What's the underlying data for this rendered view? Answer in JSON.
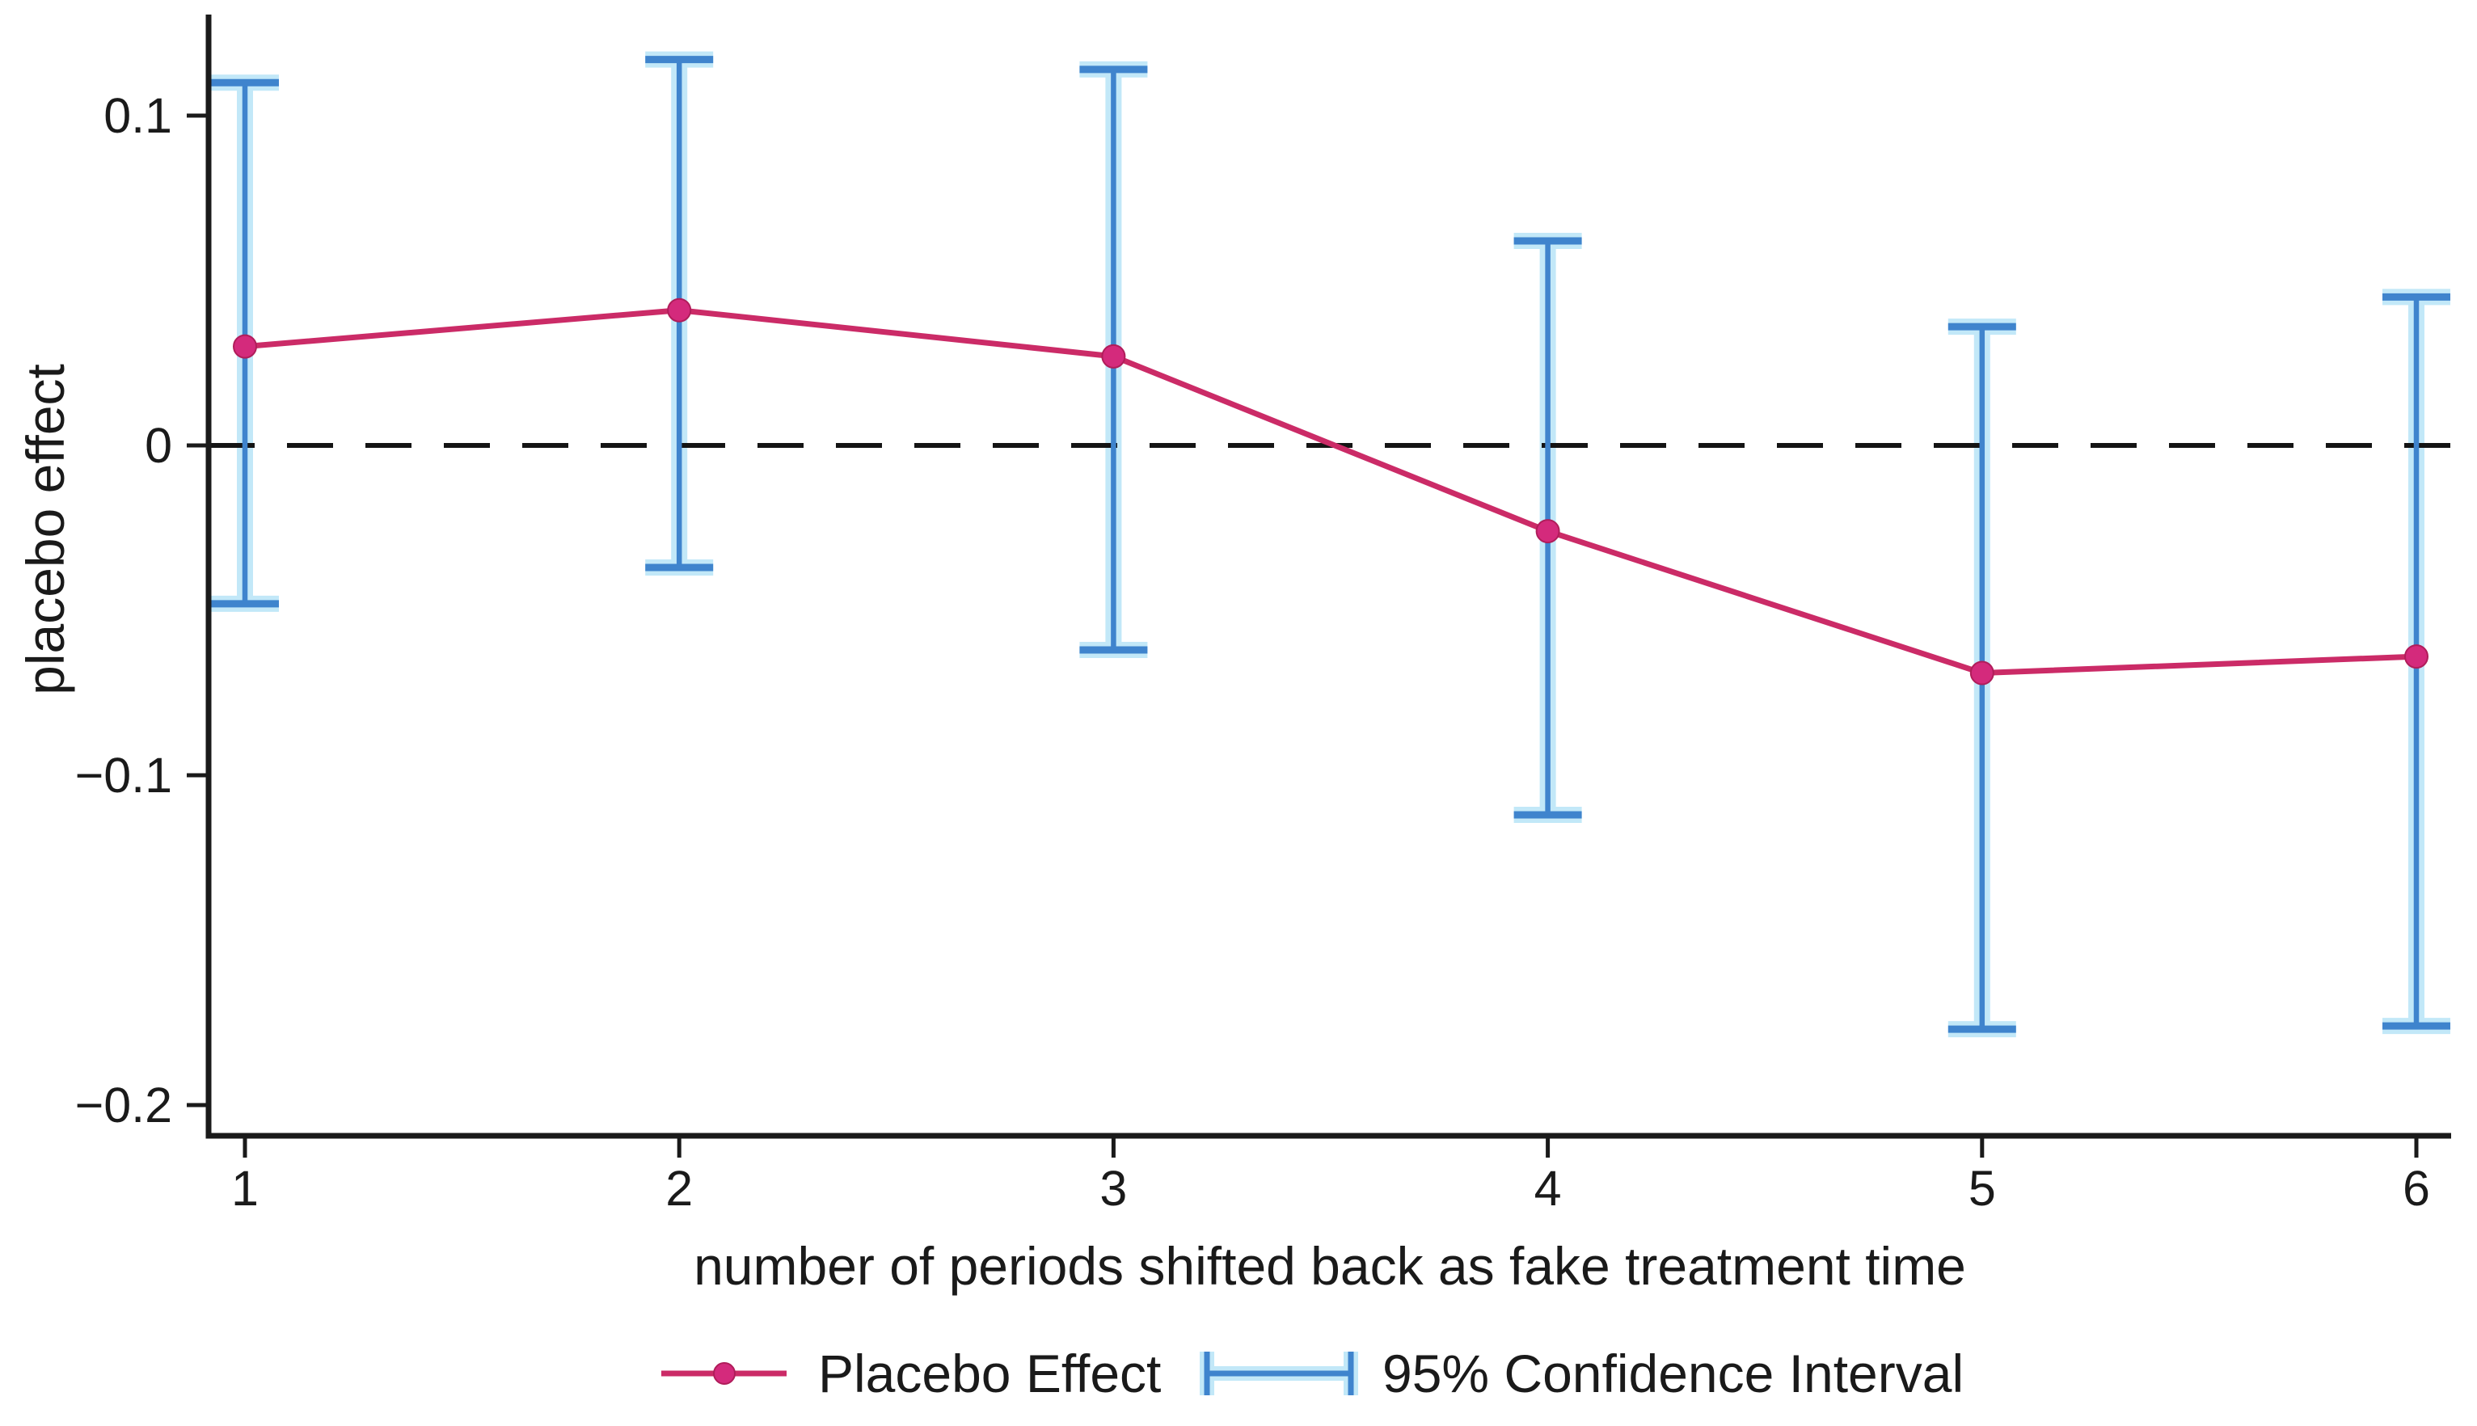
{
  "figure": {
    "background": "#ffffff",
    "title": ""
  },
  "axes": {
    "x": {
      "label": "number of periods shifted back as fake treatment time",
      "tick_values": [
        1,
        2,
        3,
        4,
        5,
        6
      ],
      "tick_labels": [
        "1",
        "2",
        "3",
        "4",
        "5",
        "6"
      ]
    },
    "y": {
      "label": "placebo effect",
      "tick_values": [
        0.1,
        0,
        -0.1,
        -0.2
      ],
      "tick_labels": [
        "0.1",
        "0",
        "−0.1",
        "−0.2"
      ]
    }
  },
  "legend": {
    "items": [
      {
        "label": "Placebo Effect",
        "series": "estimate",
        "sample": "line-with-marker"
      },
      {
        "label": "95% Confidence Interval",
        "series": "ci",
        "sample": "error-bar"
      }
    ],
    "position": "bottom-center"
  },
  "colors": {
    "line": "#cb2b67",
    "marker": "#d42a7c",
    "marker_edge": "#b01d5a",
    "ci": "#3f84cd",
    "ci_halo": "#bfe7f8",
    "axis": "#1a1a1a",
    "text": "#1a1a1a",
    "zero_line": "#141414",
    "background": "#ffffff"
  },
  "chart_data": {
    "type": "line",
    "x": [
      1,
      2,
      3,
      4,
      5,
      6
    ],
    "series": [
      {
        "name": "Placebo Effect",
        "values": [
          0.03,
          0.041,
          0.027,
          -0.026,
          -0.069,
          -0.064
        ]
      },
      {
        "name": "95% CI upper bound",
        "values": [
          0.11,
          0.117,
          0.114,
          0.062,
          0.036,
          0.045
        ]
      },
      {
        "name": "95% CI lower bound",
        "values": [
          -0.048,
          -0.037,
          -0.062,
          -0.112,
          -0.177,
          -0.176
        ]
      }
    ],
    "title": "",
    "xlabel": "number of periods shifted back as fake treatment time",
    "ylabel": "placebo effect",
    "xlim": [
      0.9,
      6.1
    ],
    "ylim": [
      -0.213,
      0.131
    ],
    "grid": false,
    "zero_reference_line": 0,
    "error_bars": "95% confidence interval with caps",
    "marker": "circle",
    "legend_position": "bottom-center"
  }
}
